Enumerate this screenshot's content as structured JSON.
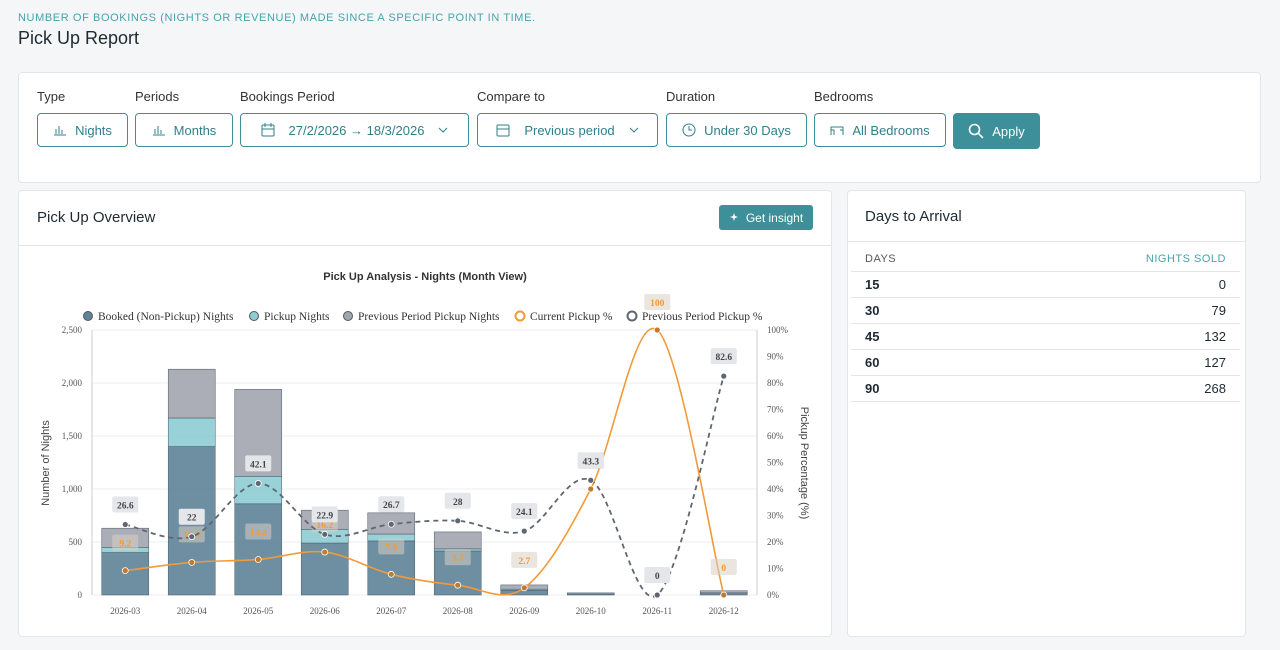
{
  "header": {
    "subtitle": "NUMBER OF BOOKINGS (NIGHTS OR REVENUE) MADE SINCE A SPECIFIC POINT IN TIME.",
    "title": "Pick Up Report"
  },
  "filters": [
    {
      "label": "Type",
      "value": "Nights"
    },
    {
      "label": "Periods",
      "value": "Months"
    },
    {
      "label": "Bookings Period",
      "value": "27/2/2026 → 18/3/2026"
    },
    {
      "label": "Compare to",
      "value": "Previous period"
    },
    {
      "label": "Duration",
      "value": "Under 30 Days"
    },
    {
      "label": "Bedrooms",
      "value": "All Bedrooms"
    }
  ],
  "apply": "Apply",
  "overview": {
    "title": "Pick Up Overview",
    "insight": "Get insight"
  },
  "chart_data": {
    "type": "stacked-bar-line",
    "title": "Pick Up Analysis - Nights (Month View)",
    "y_label": "Number of Nights",
    "y2_label": "Pickup Percentage (%)",
    "categories": [
      "2026-03",
      "2026-04",
      "2026-05",
      "2026-06",
      "2026-07",
      "2026-08",
      "2026-09",
      "2026-10",
      "2026-11",
      "2026-12"
    ],
    "series": [
      {
        "name": "Booked (Non-Pickup) Nights",
        "color": "#5f8399",
        "values": [
          400,
          1400,
          860,
          490,
          510,
          415,
          45,
          10,
          0,
          20
        ]
      },
      {
        "name": "Pickup Nights",
        "color": "#8fcdd4",
        "values": [
          50,
          270,
          260,
          130,
          65,
          20,
          10,
          10,
          0,
          0
        ]
      },
      {
        "name": "Previous Period Pickup Nights",
        "color": "#a2a6af",
        "values": [
          180,
          460,
          820,
          180,
          200,
          160,
          40,
          0,
          0,
          20
        ]
      },
      {
        "name": "Current Pickup %",
        "color": "#f29a38",
        "axis": "y2",
        "values": [
          9.2,
          12.3,
          13.4,
          16.2,
          7.8,
          3.7,
          2.7,
          40,
          100,
          0
        ]
      },
      {
        "name": "Previous Period Pickup %",
        "color": "#5f6670",
        "axis": "y2",
        "values": [
          26.6,
          22,
          42.1,
          22.9,
          26.7,
          28,
          24.1,
          43.3,
          0,
          82.6
        ]
      }
    ],
    "ylim": [
      0,
      2500
    ],
    "yticks": [
      0,
      500,
      {
        "value": 1000,
        "label": "1,000"
      },
      {
        "value": 1500,
        "label": "1,500"
      },
      {
        "value": 2000,
        "label": "2,000"
      },
      {
        "value": 2500,
        "label": "2,500"
      }
    ],
    "y2lim": [
      0,
      100
    ],
    "y2ticks": [
      {
        "value": 0,
        "label": "0%"
      },
      {
        "value": 10,
        "label": "10%"
      },
      {
        "value": 20,
        "label": "20%"
      },
      {
        "value": 30,
        "label": "30%"
      },
      {
        "value": 40,
        "label": "40%"
      },
      {
        "value": 50,
        "label": "50%"
      },
      {
        "value": 60,
        "label": "60%"
      },
      {
        "value": 70,
        "label": "70%"
      },
      {
        "value": 80,
        "label": "80%"
      },
      {
        "value": 90,
        "label": "90%"
      },
      {
        "value": 100,
        "label": "100%"
      }
    ],
    "grid": true
  },
  "arrival": {
    "title": "Days to Arrival",
    "columns": [
      "DAYS",
      "NIGHTS SOLD"
    ],
    "rows": [
      [
        "15",
        "0"
      ],
      [
        "30",
        "79"
      ],
      [
        "45",
        "132"
      ],
      [
        "60",
        "127"
      ],
      [
        "90",
        "268"
      ]
    ]
  }
}
